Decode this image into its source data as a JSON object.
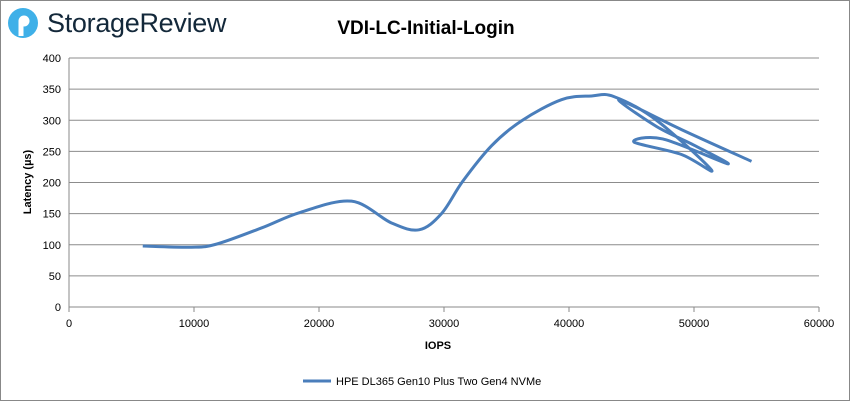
{
  "brand": "StorageReview",
  "chart_data": {
    "type": "line",
    "title": "VDI-LC-Initial-Login",
    "xlabel": "IOPS",
    "ylabel": "Latency (µs)",
    "xlim": [
      0,
      60000
    ],
    "ylim": [
      0,
      400
    ],
    "xticks": [
      0,
      10000,
      20000,
      30000,
      40000,
      50000,
      60000
    ],
    "yticks": [
      0,
      50,
      100,
      150,
      200,
      250,
      300,
      350,
      400
    ],
    "grid": "horizontal",
    "legend": "bottom",
    "color": "#4a7ebb",
    "series": [
      {
        "name": "HPE DL365 Gen10 Plus Two Gen4 NVMe",
        "x": [
          5900,
          9800,
          11800,
          15400,
          18500,
          22600,
          25800,
          28000,
          29800,
          31500,
          33800,
          36200,
          39400,
          41800,
          43600,
          47000,
          51400,
          49000,
          45200,
          47500,
          52700,
          50000,
          47000,
          44000,
          49000,
          54600
        ],
        "y": [
          98,
          96,
          101,
          127,
          152,
          170,
          135,
          124,
          150,
          202,
          259,
          299,
          333,
          339,
          338,
          300,
          220,
          245,
          265,
          270,
          230,
          260,
          290,
          333,
          285,
          234
        ]
      }
    ]
  }
}
